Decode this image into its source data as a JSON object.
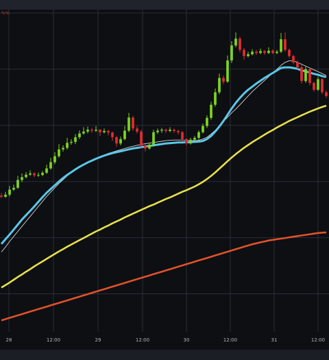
{
  "window": {
    "topbar_color": "#20232b",
    "bottombar_color": "#1b1e25",
    "background": "#0d0f13"
  },
  "marker_label": "%%",
  "chart_data": {
    "type": "candlestick",
    "title": "",
    "grid": true,
    "x_ticks": [
      "28",
      "12:00",
      "29",
      "12:00",
      "30",
      "12:00",
      "31",
      "12:00"
    ],
    "x_tick_positions": [
      0,
      1,
      2,
      3,
      4,
      5,
      6,
      7
    ],
    "y_range": [
      0,
      100
    ],
    "colors": {
      "up": "#7ed321",
      "down": "#e02d2d",
      "ma_fast": "#5bc8e8",
      "ma_thin": "#d8d8d8",
      "ma_mid": "#e8e04a",
      "ma_slow": "#e0522a",
      "grid": "#2a2e39"
    },
    "candles": [
      [
        41.5,
        41.1,
        42.3,
        40.7
      ],
      [
        41.1,
        41.8,
        42.7,
        40.8
      ],
      [
        41.8,
        43.4,
        44.6,
        41.2
      ],
      [
        43.4,
        44.0,
        45.0,
        43.0
      ],
      [
        44.0,
        46.5,
        47.8,
        43.6
      ],
      [
        46.5,
        47.4,
        48.6,
        45.8
      ],
      [
        47.4,
        48.2,
        49.0,
        47.0
      ],
      [
        48.2,
        48.6,
        49.6,
        47.8
      ],
      [
        48.6,
        48.0,
        49.0,
        47.4
      ],
      [
        48.0,
        48.1,
        48.9,
        47.5
      ],
      [
        48.1,
        48.8,
        49.4,
        47.7
      ],
      [
        48.8,
        50.2,
        51.4,
        48.4
      ],
      [
        50.2,
        52.2,
        53.6,
        49.8
      ],
      [
        52.2,
        54.1,
        55.4,
        51.6
      ],
      [
        54.1,
        56.3,
        58.0,
        53.6
      ],
      [
        56.3,
        56.8,
        57.6,
        55.6
      ],
      [
        56.8,
        58.4,
        60.0,
        56.2
      ],
      [
        58.4,
        58.7,
        59.6,
        57.8
      ],
      [
        58.7,
        60.2,
        61.2,
        58.0
      ],
      [
        60.2,
        61.4,
        62.4,
        59.6
      ],
      [
        61.4,
        62.0,
        63.4,
        61.0
      ],
      [
        62.0,
        62.6,
        63.6,
        61.4
      ],
      [
        62.6,
        62.3,
        63.2,
        61.6
      ],
      [
        62.3,
        62.6,
        63.8,
        61.8
      ],
      [
        62.6,
        61.8,
        62.8,
        60.6
      ],
      [
        61.8,
        62.2,
        63.0,
        61.4
      ],
      [
        62.2,
        61.7,
        62.6,
        60.8
      ],
      [
        61.7,
        60.2,
        62.0,
        59.0
      ],
      [
        60.2,
        58.2,
        60.6,
        57.2
      ],
      [
        58.2,
        59.6,
        60.4,
        57.6
      ],
      [
        59.6,
        62.3,
        63.8,
        59.2
      ],
      [
        62.3,
        66.5,
        68.0,
        61.8
      ],
      [
        66.5,
        63.0,
        67.0,
        62.2
      ],
      [
        63.0,
        62.0,
        63.8,
        61.4
      ],
      [
        62.0,
        57.4,
        62.6,
        56.6
      ],
      [
        57.4,
        56.6,
        58.0,
        55.6
      ],
      [
        56.6,
        57.8,
        58.4,
        56.2
      ],
      [
        57.8,
        61.8,
        62.6,
        57.2
      ],
      [
        61.8,
        62.3,
        63.0,
        61.2
      ],
      [
        62.3,
        62.6,
        63.2,
        61.6
      ],
      [
        62.6,
        62.2,
        63.0,
        61.6
      ],
      [
        62.2,
        62.6,
        63.4,
        61.8
      ],
      [
        62.6,
        62.2,
        63.0,
        61.6
      ],
      [
        62.2,
        61.8,
        62.6,
        61.0
      ],
      [
        61.8,
        59.6,
        62.2,
        59.0
      ],
      [
        59.6,
        58.2,
        59.9,
        57.6
      ],
      [
        58.2,
        59.4,
        60.0,
        57.8
      ],
      [
        59.4,
        60.0,
        60.6,
        59.0
      ],
      [
        60.0,
        61.8,
        62.4,
        59.4
      ],
      [
        61.8,
        63.8,
        64.6,
        61.4
      ],
      [
        63.8,
        66.4,
        67.2,
        63.2
      ],
      [
        66.4,
        70.6,
        71.6,
        65.8
      ],
      [
        70.6,
        74.6,
        75.8,
        70.0
      ],
      [
        74.6,
        79.2,
        80.6,
        74.0
      ],
      [
        79.2,
        78.0,
        80.0,
        77.2
      ],
      [
        78.0,
        84.8,
        86.4,
        77.6
      ],
      [
        84.8,
        89.6,
        91.0,
        84.0
      ],
      [
        89.6,
        91.8,
        93.8,
        89.0
      ],
      [
        91.8,
        88.2,
        92.4,
        87.4
      ],
      [
        88.2,
        86.2,
        88.8,
        85.0
      ],
      [
        86.2,
        86.8,
        87.6,
        85.8
      ],
      [
        86.8,
        87.6,
        88.4,
        86.4
      ],
      [
        87.6,
        87.2,
        88.2,
        86.6
      ],
      [
        87.2,
        87.8,
        88.6,
        86.8
      ],
      [
        87.8,
        87.2,
        88.2,
        86.6
      ],
      [
        87.2,
        87.9,
        89.0,
        86.8
      ],
      [
        87.9,
        87.2,
        88.4,
        86.8
      ],
      [
        87.2,
        87.6,
        88.2,
        86.8
      ],
      [
        87.6,
        91.6,
        93.6,
        87.2
      ],
      [
        91.6,
        88.2,
        93.8,
        87.6
      ],
      [
        88.2,
        86.2,
        88.6,
        85.6
      ],
      [
        86.2,
        84.2,
        86.6,
        83.6
      ],
      [
        84.2,
        82.6,
        84.8,
        82.0
      ],
      [
        82.6,
        78.2,
        83.4,
        77.4
      ],
      [
        78.2,
        82.0,
        82.8,
        77.6
      ],
      [
        82.0,
        77.6,
        82.4,
        76.8
      ],
      [
        77.6,
        75.4,
        78.0,
        74.8
      ],
      [
        75.4,
        78.8,
        79.6,
        75.0
      ],
      [
        78.8,
        74.6,
        79.2,
        74.0
      ],
      [
        74.6,
        73.4,
        75.2,
        72.8
      ]
    ],
    "series": [
      {
        "role": "ma_fast",
        "values": [
          26,
          27.5,
          29,
          30.6,
          32.2,
          33.8,
          35.2,
          36.6,
          38,
          39.5,
          41,
          42.4,
          43.6,
          44.8,
          46,
          47.1,
          48.1,
          49,
          49.9,
          50.7,
          51.4,
          52.1,
          52.7,
          53.3,
          53.8,
          54.3,
          54.7,
          55.1,
          55.4,
          55.7,
          56,
          56.3,
          56.6,
          56.8,
          57,
          57.2,
          57.4,
          57.6,
          57.8,
          58,
          58.2,
          58.3,
          58.4,
          58.5,
          58.5,
          58.6,
          58.6,
          58.7,
          58.8,
          59,
          59.6,
          60.6,
          62,
          63.6,
          65.4,
          67.4,
          69.4,
          71.2,
          72.8,
          74.2,
          75.4,
          76.4,
          77.4,
          78.3,
          79.2,
          80,
          80.8,
          81.6,
          82.4,
          82.6,
          82.6,
          82.4,
          82.1,
          81.6,
          81.3,
          80.9,
          80.5,
          80.2,
          79.8,
          79.5
        ]
      },
      {
        "role": "ma_thin",
        "values": [
          23.4,
          25,
          26.8,
          28.4,
          30,
          31.6,
          33.2,
          34.8,
          36.4,
          38,
          39.6,
          41.2,
          42.6,
          44,
          45.4,
          46.6,
          47.8,
          48.8,
          49.8,
          50.6,
          51.4,
          52.1,
          52.8,
          53.4,
          54,
          54.5,
          55,
          55.4,
          55.8,
          56.2,
          56.6,
          57,
          57.3,
          57.6,
          57.9,
          58.1,
          58.3,
          58.5,
          58.7,
          58.9,
          59.1,
          59.2,
          59.3,
          59.3,
          59.3,
          59.2,
          59.1,
          59.1,
          59.2,
          59.6,
          60.2,
          61.2,
          62.4,
          63.8,
          65.2,
          66.6,
          68,
          69.2,
          70.6,
          72,
          73.4,
          74.8,
          76,
          77.2,
          78.4,
          79.6,
          80.8,
          82,
          83.2,
          84.2,
          84.7,
          84.6,
          84.2,
          83.6,
          83,
          82.4,
          81.8,
          81.2,
          80.6,
          80
        ]
      },
      {
        "role": "ma_mid",
        "values": [
          12,
          12.8,
          13.6,
          14.5,
          15.4,
          16.2,
          17.1,
          17.9,
          18.8,
          19.6,
          20.4,
          21.2,
          22,
          22.8,
          23.6,
          24.3,
          25.1,
          25.8,
          26.5,
          27.2,
          27.9,
          28.6,
          29.3,
          30,
          30.6,
          31.3,
          31.9,
          32.6,
          33.2,
          33.8,
          34.5,
          35.1,
          35.7,
          36.3,
          36.9,
          37.5,
          38.1,
          38.6,
          39.2,
          39.8,
          40.4,
          40.9,
          41.5,
          42.1,
          42.7,
          43.2,
          43.8,
          44.4,
          45.1,
          45.9,
          46.8,
          47.8,
          48.9,
          50.1,
          51.3,
          52.5,
          53.7,
          54.8,
          55.8,
          56.8,
          57.7,
          58.6,
          59.4,
          60.2,
          61,
          61.8,
          62.5,
          63.3,
          64,
          64.7,
          65.4,
          66,
          66.6,
          67.2,
          67.8,
          68.4,
          68.9,
          69.4,
          69.9,
          70.3
        ]
      },
      {
        "role": "ma_slow",
        "values": [
          1.5,
          1.9,
          2.3,
          2.7,
          3.1,
          3.5,
          3.9,
          4.3,
          4.7,
          5.1,
          5.5,
          5.9,
          6.3,
          6.7,
          7.1,
          7.5,
          7.9,
          8.3,
          8.7,
          9.1,
          9.5,
          9.9,
          10.3,
          10.7,
          11.1,
          11.5,
          11.9,
          12.3,
          12.7,
          13.1,
          13.5,
          13.9,
          14.3,
          14.7,
          15.1,
          15.5,
          15.9,
          16.3,
          16.7,
          17.1,
          17.5,
          17.9,
          18.3,
          18.7,
          19.1,
          19.5,
          19.9,
          20.3,
          20.7,
          21.1,
          21.5,
          21.9,
          22.3,
          22.7,
          23.1,
          23.5,
          23.9,
          24.3,
          24.7,
          25.1,
          25.5,
          25.9,
          26.2,
          26.5,
          26.8,
          27.1,
          27.3,
          27.5,
          27.7,
          27.9,
          28.1,
          28.3,
          28.5,
          28.7,
          28.9,
          29.1,
          29.3,
          29.5,
          29.6,
          29.7
        ]
      }
    ]
  }
}
